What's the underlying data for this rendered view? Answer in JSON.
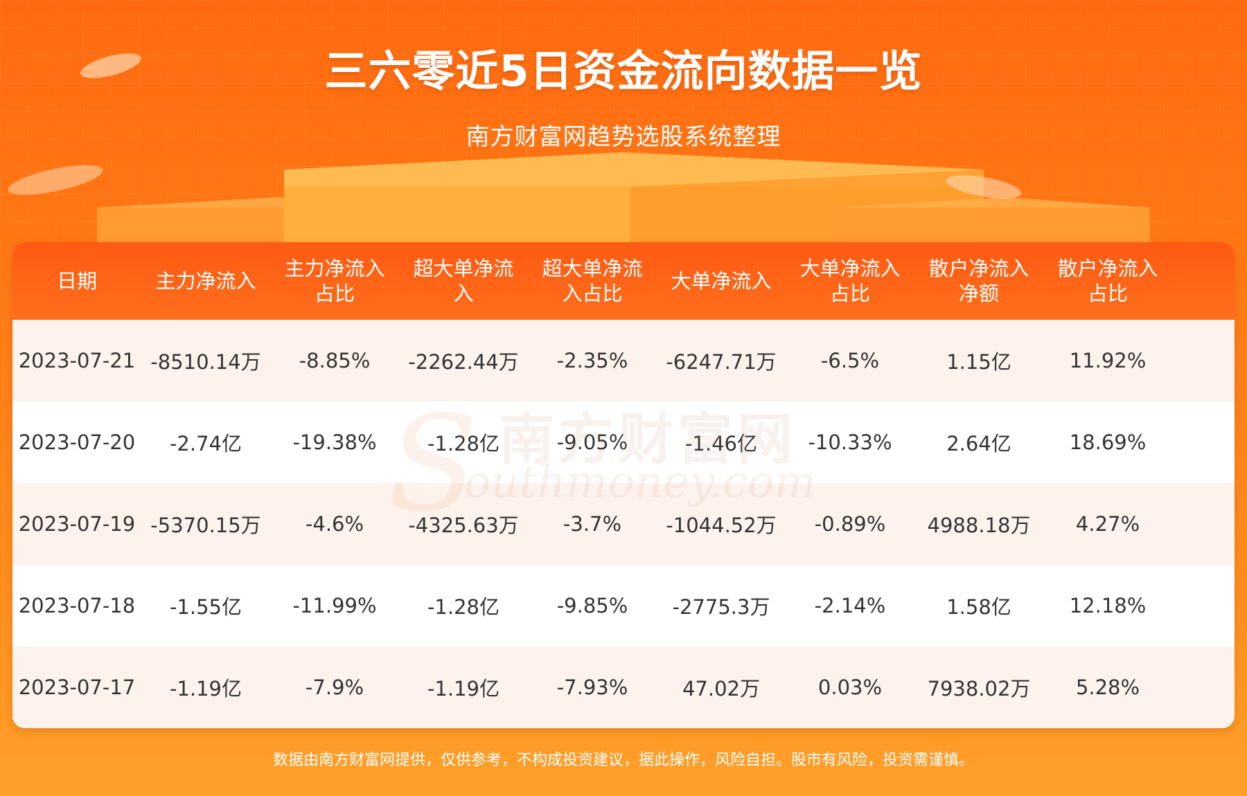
{
  "header": {
    "title": "三六零近5日资金流向数据一览",
    "subtitle": "南方财富网趋势选股系统整理"
  },
  "table": {
    "columns": [
      "日期",
      "主力净流入",
      "主力净流入占比",
      "超大单净流入",
      "超大单净流入占比",
      "大单净流入",
      "大单净流入占比",
      "散户净流入净额",
      "散户净流入占比"
    ],
    "rows": [
      [
        "2023-07-21",
        "-8510.14万",
        "-8.85%",
        "-2262.44万",
        "-2.35%",
        "-6247.71万",
        "-6.5%",
        "1.15亿",
        "11.92%"
      ],
      [
        "2023-07-20",
        "-2.74亿",
        "-19.38%",
        "-1.28亿",
        "-9.05%",
        "-1.46亿",
        "-10.33%",
        "2.64亿",
        "18.69%"
      ],
      [
        "2023-07-19",
        "-5370.15万",
        "-4.6%",
        "-4325.63万",
        "-3.7%",
        "-1044.52万",
        "-0.89%",
        "4988.18万",
        "4.27%"
      ],
      [
        "2023-07-18",
        "-1.55亿",
        "-11.99%",
        "-1.28亿",
        "-9.85%",
        "-2775.3万",
        "-2.14%",
        "1.58亿",
        "12.18%"
      ],
      [
        "2023-07-17",
        "-1.19亿",
        "-7.9%",
        "-1.19亿",
        "-7.93%",
        "47.02万",
        "0.03%",
        "7938.02万",
        "5.28%"
      ]
    ]
  },
  "watermark": {
    "cn": "南方财富网",
    "en": "outhmoney.com",
    "letter": "S"
  },
  "footer": {
    "disclaimer": "数据由南方财富网提供，仅供参考，不构成投资建议，据此操作，风险自担。股市有风险，投资需谨慎。"
  },
  "colors": {
    "background": "#ff7a12",
    "header_row": "#ff5a13",
    "row_alt": "#fdf3ec",
    "text": "#333333"
  }
}
